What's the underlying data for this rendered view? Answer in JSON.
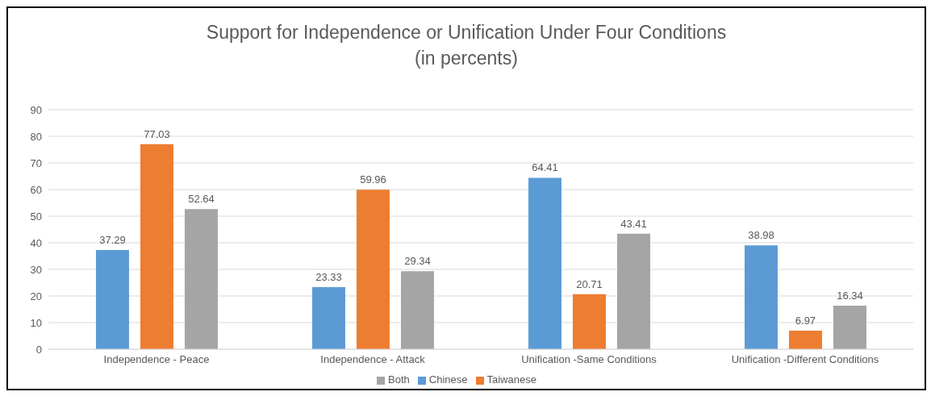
{
  "chart_data": {
    "type": "bar",
    "title": "Support for Independence or Unification Under Four Conditions",
    "subtitle": "(in percents)",
    "categories": [
      "Independence - Peace",
      "Independence - Attack",
      "Unification -Same Conditions",
      "Unification -Different Conditions"
    ],
    "series": [
      {
        "name": "Chinese",
        "color": "#5b9bd5",
        "values": [
          37.29,
          23.33,
          64.41,
          38.98
        ]
      },
      {
        "name": "Taiwanese",
        "color": "#ed7d31",
        "values": [
          77.03,
          59.96,
          20.71,
          6.97
        ]
      },
      {
        "name": "Both",
        "color": "#a5a5a5",
        "values": [
          52.64,
          29.34,
          43.41,
          16.34
        ]
      }
    ],
    "ylim": [
      0,
      90
    ],
    "yticks": [
      0,
      10,
      20,
      30,
      40,
      50,
      60,
      70,
      80,
      90
    ],
    "grid": "y",
    "legend": "bottom",
    "data_labels": true
  }
}
